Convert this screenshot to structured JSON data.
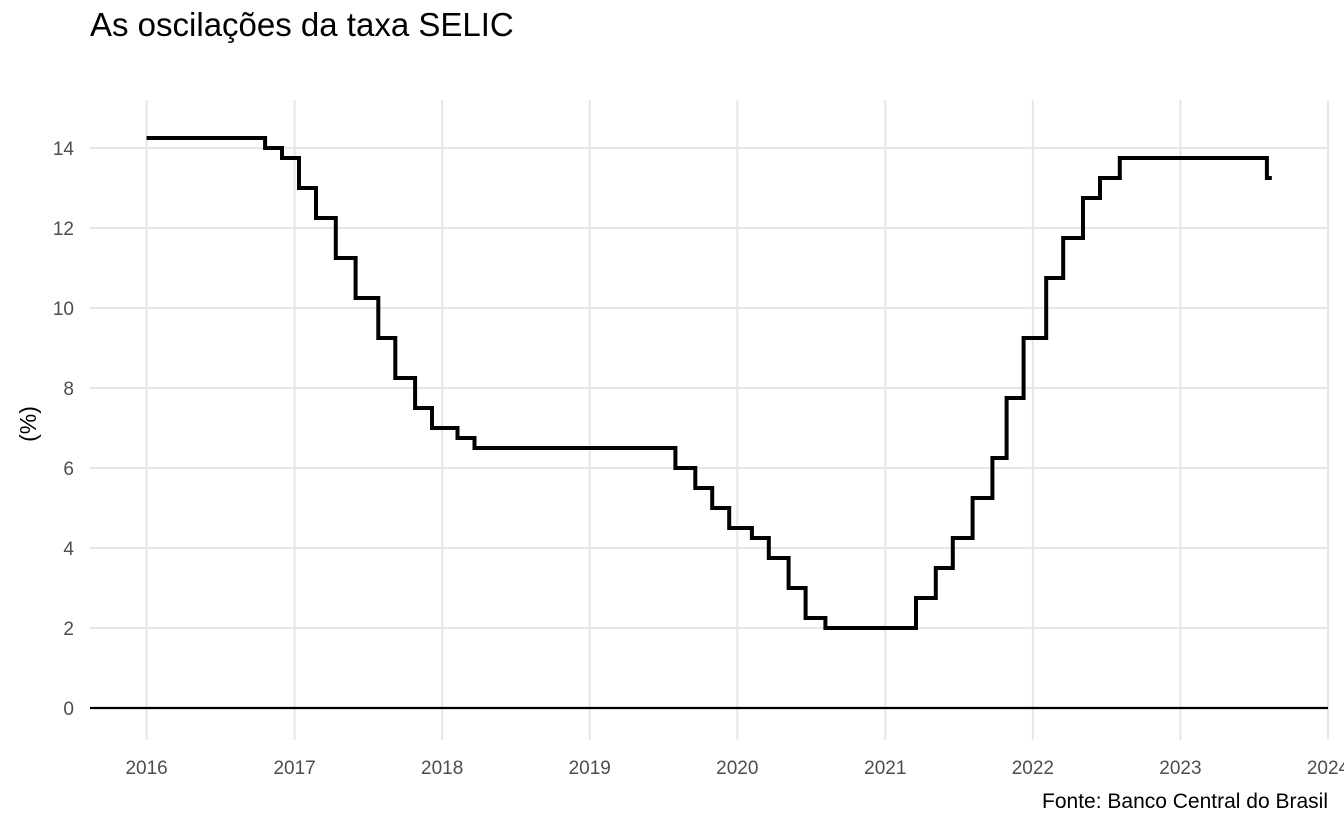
{
  "chart_data": {
    "type": "line",
    "title": "As oscilações da taxa SELIC",
    "xlabel": "",
    "ylabel": "(%)",
    "caption": "Fonte: Banco Central do Brasil",
    "step": true,
    "grid": true,
    "legend": "none",
    "xlim": [
      "2015-08-14",
      "2024-01-01"
    ],
    "ylim": [
      -0.8,
      15.2
    ],
    "x_ticks": [
      "2016",
      "2017",
      "2018",
      "2019",
      "2020",
      "2021",
      "2022",
      "2023",
      "2024"
    ],
    "y_ticks": [
      0,
      2,
      4,
      6,
      8,
      10,
      12,
      14
    ],
    "hline": 0,
    "series": [
      {
        "color": "#000000",
        "points": [
          [
            "2016-01-01",
            14.25
          ],
          [
            "2016-10-20",
            14.0
          ],
          [
            "2016-12-01",
            13.75
          ],
          [
            "2017-01-12",
            13.0
          ],
          [
            "2017-02-23",
            12.25
          ],
          [
            "2017-04-13",
            11.25
          ],
          [
            "2017-06-01",
            10.25
          ],
          [
            "2017-07-27",
            9.25
          ],
          [
            "2017-09-07",
            8.25
          ],
          [
            "2017-10-26",
            7.5
          ],
          [
            "2017-12-07",
            7.0
          ],
          [
            "2018-02-08",
            6.75
          ],
          [
            "2018-03-22",
            6.5
          ],
          [
            "2019-08-01",
            6.0
          ],
          [
            "2019-09-19",
            5.5
          ],
          [
            "2019-10-31",
            5.0
          ],
          [
            "2019-12-12",
            4.5
          ],
          [
            "2020-02-06",
            4.25
          ],
          [
            "2020-03-19",
            3.75
          ],
          [
            "2020-05-07",
            3.0
          ],
          [
            "2020-06-18",
            2.25
          ],
          [
            "2020-08-06",
            2.0
          ],
          [
            "2021-03-18",
            2.75
          ],
          [
            "2021-05-06",
            3.5
          ],
          [
            "2021-06-17",
            4.25
          ],
          [
            "2021-08-05",
            5.25
          ],
          [
            "2021-09-23",
            6.25
          ],
          [
            "2021-10-28",
            7.75
          ],
          [
            "2021-12-09",
            9.25
          ],
          [
            "2022-02-03",
            10.75
          ],
          [
            "2022-03-17",
            11.75
          ],
          [
            "2022-05-05",
            12.75
          ],
          [
            "2022-06-16",
            13.25
          ],
          [
            "2022-08-04",
            13.75
          ],
          [
            "2023-08-03",
            13.25
          ],
          [
            "2023-08-15",
            13.25
          ]
        ]
      }
    ]
  }
}
